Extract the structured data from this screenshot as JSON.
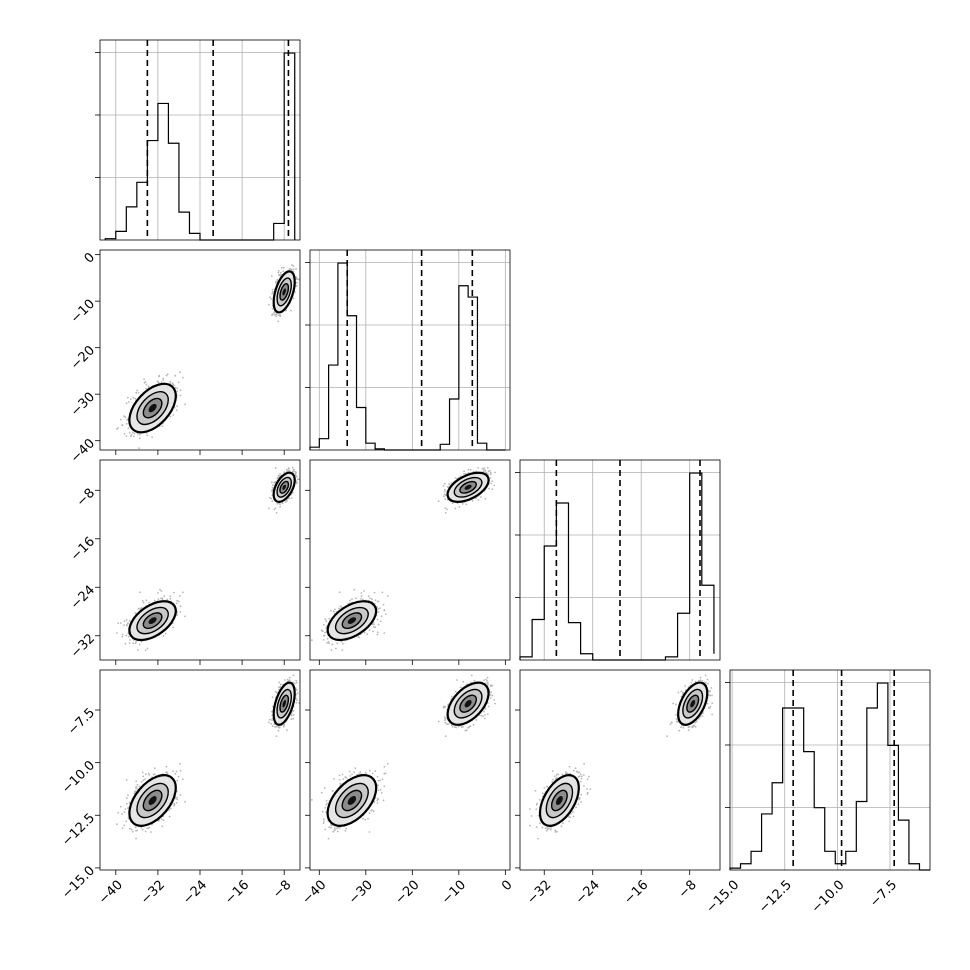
{
  "chart_data": {
    "type": "corner",
    "parameters": 4,
    "grid": true,
    "colors": {
      "frame": "#000000",
      "grid": "#b0b0b0",
      "points": "#000000",
      "contour_fill_dark": "#111111",
      "contour_fill_mid": "#8c8c8c",
      "contour_fill_light": "#e6e6e6"
    },
    "axes": [
      {
        "lim": [
          -43,
          -5
        ],
        "ticks": [
          -40,
          -32,
          -24,
          -16,
          -8
        ],
        "tick_labels": [
          "−40",
          "−32",
          "−24",
          "−16",
          "−8"
        ]
      },
      {
        "lim": [
          -42,
          1
        ],
        "ticks": [
          -40,
          -30,
          -20,
          -10,
          0
        ],
        "tick_labels": [
          "−40",
          "−30",
          "−20",
          "−10",
          "0"
        ]
      },
      {
        "lim": [
          -36,
          -3
        ],
        "ticks": [
          -32,
          -24,
          -16,
          -8
        ],
        "tick_labels": [
          "−32",
          "−24",
          "−16",
          "−8"
        ]
      },
      {
        "lim": [
          -15.1,
          -5.6
        ],
        "ticks": [
          -15.0,
          -12.5,
          -10.0,
          -7.5
        ],
        "tick_labels": [
          "−15.0",
          "−12.5",
          "−10.0",
          "−7.5"
        ]
      }
    ],
    "modes": [
      {
        "weight": 0.5,
        "mean": [
          -33,
          -33,
          -29.5,
          -11.8
        ],
        "sd": [
          2.2,
          2.6,
          1.6,
          0.6
        ]
      },
      {
        "weight": 0.5,
        "mean": [
          -8,
          -8,
          -7.5,
          -7.2
        ],
        "sd": [
          1.0,
          2.2,
          1.2,
          0.5
        ]
      }
    ],
    "quantiles": [
      [
        -34,
        -21.5,
        -7.2
      ],
      [
        -34,
        -18,
        -7.1
      ],
      [
        -30,
        -19.5,
        -6.3
      ],
      [
        -12.1,
        -9.8,
        -7.3
      ]
    ],
    "histograms": [
      {
        "bins": [
          -42,
          -40,
          -38,
          -36,
          -34,
          -32,
          -30,
          -28,
          -26,
          -24,
          -22,
          -20,
          -18,
          -16,
          -14,
          -12,
          -10,
          -8,
          -6
        ],
        "counts": [
          0.02,
          0.13,
          0.5,
          0.87,
          1.5,
          2.06,
          1.46,
          0.42,
          0.1,
          0.0,
          0.0,
          0.0,
          0.0,
          0.0,
          0.0,
          0.0,
          0.25,
          2.82,
          0.0
        ]
      },
      {
        "bins": [
          -42,
          -40,
          -38,
          -36,
          -34,
          -32,
          -30,
          -28,
          -26,
          -24,
          -22,
          -20,
          -18,
          -16,
          -14,
          -12,
          -10,
          -8,
          -6,
          -4,
          -2,
          0
        ],
        "counts": [
          0.05,
          0.2,
          1.5,
          3.3,
          2.37,
          0.75,
          0.12,
          0.02,
          0.0,
          0.0,
          0.0,
          0.0,
          0.0,
          0.0,
          0.1,
          0.9,
          2.9,
          2.7,
          0.12,
          0.0,
          0.0
        ]
      },
      {
        "bins": [
          -36,
          -34,
          -32,
          -30,
          -28,
          -26,
          -24,
          -22,
          -20,
          -18,
          -16,
          -14,
          -12,
          -10,
          -8,
          -6,
          -4
        ],
        "counts": [
          0.05,
          0.65,
          1.83,
          2.52,
          0.6,
          0.1,
          0.0,
          0.0,
          0.0,
          0.0,
          0.0,
          0.0,
          0.05,
          0.75,
          3.0,
          1.2,
          0.1
        ]
      },
      {
        "bins": [
          -15.1,
          -14.6,
          -14.1,
          -13.6,
          -13.1,
          -12.6,
          -12.1,
          -11.6,
          -11.1,
          -10.6,
          -10.1,
          -9.6,
          -9.1,
          -8.6,
          -8.1,
          -7.6,
          -7.1,
          -6.6,
          -6.1,
          -5.6
        ],
        "counts": [
          0.03,
          0.1,
          0.3,
          0.9,
          1.4,
          2.6,
          2.6,
          1.9,
          1.0,
          0.3,
          0.1,
          0.3,
          1.1,
          2.6,
          3.0,
          2.0,
          0.8,
          0.1,
          0.0
        ]
      }
    ]
  }
}
